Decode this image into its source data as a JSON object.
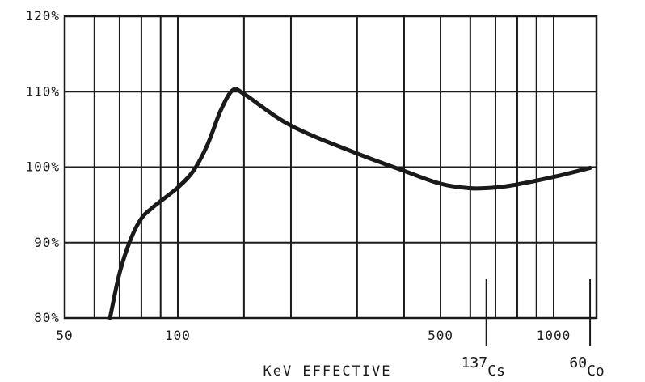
{
  "chart_data": {
    "type": "line",
    "title": "",
    "xlabel": "KeV EFFECTIVE",
    "ylabel": "",
    "x_scale": "log",
    "xlim": [
      50,
      1300
    ],
    "ylim": [
      80,
      120
    ],
    "x_tick_values": [
      50,
      100,
      500,
      1000
    ],
    "x_tick_labels": [
      "50",
      "100",
      "500",
      "1000"
    ],
    "x_gridlines": [
      60,
      70,
      80,
      90,
      100,
      150,
      200,
      300,
      400,
      500,
      600,
      700,
      800,
      900,
      1000
    ],
    "y_tick_values": [
      80,
      90,
      100,
      110,
      120
    ],
    "y_tick_labels": [
      "80%",
      "90%",
      "100%",
      "110%",
      "120%"
    ],
    "grid": true,
    "series": [
      {
        "x": [
          66,
          70,
          75,
          80,
          85,
          90,
          100,
          110,
          120,
          130,
          140,
          150,
          200,
          300,
          400,
          500,
          600,
          700,
          800,
          1000,
          1100,
          1250
        ],
        "y": [
          80.0,
          86.0,
          90.5,
          93.2,
          94.5,
          95.5,
          97.3,
          99.5,
          103.0,
          107.5,
          110.2,
          109.7,
          105.5,
          101.8,
          99.5,
          97.8,
          97.2,
          97.3,
          97.7,
          98.7,
          99.2,
          99.9
        ]
      }
    ],
    "markers": [
      {
        "x": 662,
        "mass": "137",
        "symbol": "Cs"
      },
      {
        "x": 1250,
        "mass": "60",
        "symbol": "Co"
      }
    ]
  },
  "colors": {
    "ink": "#1a1a1a",
    "background": "#ffffff"
  }
}
